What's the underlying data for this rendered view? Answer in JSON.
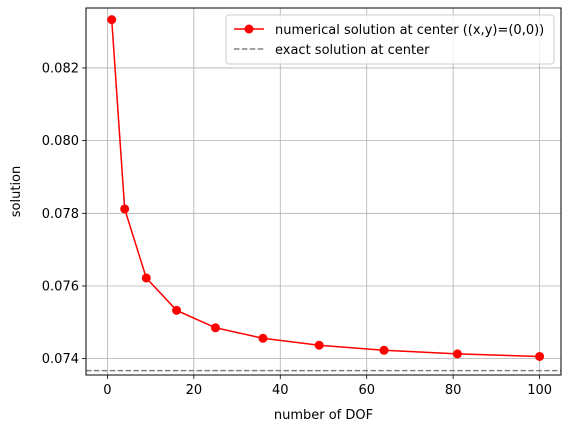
{
  "chart_data": {
    "type": "line",
    "title": "",
    "xlabel": "number of DOF",
    "ylabel": "solution",
    "xlim": [
      -4.95,
      104.95
    ],
    "ylim": [
      0.07355,
      0.08365
    ],
    "xticks": [
      0,
      20,
      40,
      60,
      80,
      100
    ],
    "xtick_labels": [
      "0",
      "20",
      "40",
      "60",
      "80",
      "100"
    ],
    "yticks": [
      0.074,
      0.076,
      0.078,
      0.08,
      0.082
    ],
    "ytick_labels": [
      "0.074",
      "0.076",
      "0.078",
      "0.080",
      "0.082"
    ],
    "grid": true,
    "legend_position": "top-right",
    "series": [
      {
        "name": "numerical solution at center ((x,y)=(0,0))",
        "color": "#ff0000",
        "marker": "circle",
        "x": [
          1,
          4,
          9,
          16,
          25,
          36,
          49,
          64,
          81,
          100
        ],
        "y": [
          0.08333,
          0.07812,
          0.07622,
          0.07533,
          0.07485,
          0.07456,
          0.07437,
          0.07423,
          0.07413,
          0.07406
        ]
      },
      {
        "name": "exact solution at center",
        "color": "#808080",
        "style": "dashed",
        "y_constant": 0.07367
      }
    ]
  }
}
